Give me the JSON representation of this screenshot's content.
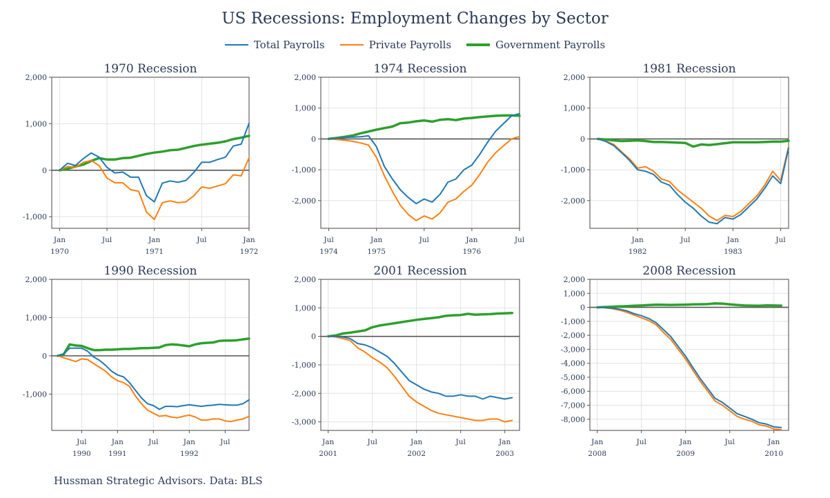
{
  "title": "US Recessions: Employment Changes by Sector",
  "legend": [
    {
      "label": "Total Payrolls",
      "color": "#1f77b4"
    },
    {
      "label": "Private Payrolls",
      "color": "#ff7f0e"
    },
    {
      "label": "Government Payrolls",
      "color": "#2ca02c"
    }
  ],
  "footer": "Hussman Strategic Advisors. Data: BLS",
  "chart_data": [
    {
      "type": "line",
      "title": "1970 Recession",
      "yticks": [
        -1000,
        0,
        1000,
        2000
      ],
      "ytick_labels": [
        "-1,000",
        "0",
        "1,000",
        "2,000"
      ],
      "ylim": [
        -1250,
        2000
      ],
      "xlim": [
        -1,
        24
      ],
      "xticks": [
        {
          "pos": 0,
          "l1": "Jan",
          "l2": "1970"
        },
        {
          "pos": 6,
          "l1": "Jul",
          "l2": ""
        },
        {
          "pos": 12,
          "l1": "Jan",
          "l2": "1971"
        },
        {
          "pos": 18,
          "l1": "Jul",
          "l2": ""
        },
        {
          "pos": 24,
          "l1": "Jan",
          "l2": "1972"
        }
      ],
      "series": [
        {
          "name": "Total Payrolls",
          "values": [
            0,
            150,
            100,
            250,
            370,
            280,
            60,
            -60,
            -40,
            -150,
            -150,
            -550,
            -680,
            -280,
            -230,
            -260,
            -220,
            -50,
            170,
            170,
            230,
            280,
            520,
            560,
            1010
          ]
        },
        {
          "name": "Private Payrolls",
          "values": [
            0,
            80,
            60,
            170,
            210,
            100,
            -170,
            -270,
            -270,
            -420,
            -450,
            -900,
            -1060,
            -700,
            -660,
            -700,
            -680,
            -550,
            -360,
            -390,
            -340,
            -290,
            -100,
            -120,
            270
          ]
        },
        {
          "name": "Government Payrolls",
          "values": [
            0,
            30,
            80,
            120,
            200,
            260,
            230,
            230,
            260,
            270,
            310,
            350,
            380,
            400,
            430,
            440,
            480,
            520,
            550,
            570,
            590,
            620,
            670,
            700,
            740
          ]
        }
      ]
    },
    {
      "type": "line",
      "title": "1974 Recession",
      "yticks": [
        -2000,
        -1000,
        0,
        1000,
        2000
      ],
      "ytick_labels": [
        "-2,000",
        "-1,000",
        "0",
        "1,000",
        "2,000"
      ],
      "ylim": [
        -2900,
        2000
      ],
      "xlim": [
        -1,
        24
      ],
      "xticks": [
        {
          "pos": 0,
          "l1": "Jul",
          "l2": "1974"
        },
        {
          "pos": 6,
          "l1": "Jan",
          "l2": "1975"
        },
        {
          "pos": 12,
          "l1": "Jul",
          "l2": ""
        },
        {
          "pos": 18,
          "l1": "Jan",
          "l2": "1976"
        },
        {
          "pos": 24,
          "l1": "Jul",
          "l2": ""
        }
      ],
      "series": [
        {
          "name": "Total Payrolls",
          "values": [
            0,
            20,
            50,
            60,
            70,
            100,
            -250,
            -900,
            -1300,
            -1650,
            -1900,
            -2100,
            -1950,
            -2050,
            -1800,
            -1400,
            -1300,
            -1000,
            -850,
            -500,
            -100,
            250,
            500,
            750,
            820
          ]
        },
        {
          "name": "Private Payrolls",
          "values": [
            0,
            -20,
            -40,
            -80,
            -130,
            -200,
            -600,
            -1200,
            -1700,
            -2150,
            -2450,
            -2650,
            -2500,
            -2600,
            -2400,
            -2050,
            -1950,
            -1700,
            -1500,
            -1150,
            -750,
            -450,
            -220,
            0,
            80
          ]
        },
        {
          "name": "Government Payrolls",
          "values": [
            0,
            30,
            70,
            110,
            180,
            240,
            300,
            350,
            400,
            510,
            530,
            570,
            600,
            560,
            620,
            640,
            610,
            660,
            680,
            710,
            730,
            750,
            760,
            760,
            750
          ]
        }
      ]
    },
    {
      "type": "line",
      "title": "1981 Recession",
      "yticks": [
        -2000,
        -1000,
        0,
        1000,
        2000
      ],
      "ytick_labels": [
        "-2,000",
        "-1,000",
        "0",
        "1,000",
        "2,000"
      ],
      "ylim": [
        -2900,
        2000
      ],
      "xlim": [
        -1,
        24
      ],
      "xticks": [
        {
          "pos": 5,
          "l1": "Jan",
          "l2": "1982"
        },
        {
          "pos": 11,
          "l1": "Jul",
          "l2": ""
        },
        {
          "pos": 17,
          "l1": "Jan",
          "l2": "1983"
        },
        {
          "pos": 23,
          "l1": "Jul",
          "l2": ""
        }
      ],
      "series": [
        {
          "name": "Total Payrolls",
          "values": [
            0,
            -80,
            -220,
            -450,
            -700,
            -1000,
            -1050,
            -1150,
            -1400,
            -1500,
            -1800,
            -2050,
            -2250,
            -2500,
            -2700,
            -2750,
            -2550,
            -2600,
            -2450,
            -2200,
            -1950,
            -1600,
            -1200,
            -1450,
            -300
          ]
        },
        {
          "name": "Private Payrolls",
          "values": [
            0,
            -70,
            -180,
            -420,
            -650,
            -950,
            -900,
            -1050,
            -1300,
            -1380,
            -1650,
            -1850,
            -2050,
            -2250,
            -2500,
            -2650,
            -2480,
            -2520,
            -2350,
            -2100,
            -1850,
            -1500,
            -1050,
            -1350,
            -250
          ]
        },
        {
          "name": "Government Payrolls",
          "values": [
            0,
            -20,
            -50,
            -70,
            -60,
            -50,
            -70,
            -100,
            -100,
            -110,
            -120,
            -130,
            -250,
            -180,
            -200,
            -170,
            -140,
            -110,
            -110,
            -110,
            -110,
            -100,
            -90,
            -90,
            -60
          ]
        }
      ]
    },
    {
      "type": "line",
      "title": "1990 Recession",
      "yticks": [
        -1000,
        0,
        1000,
        2000
      ],
      "ytick_labels": [
        "-1,000",
        "0",
        "1,000",
        "2,000"
      ],
      "ylim": [
        -1950,
        2000
      ],
      "xlim": [
        -1,
        32
      ],
      "xticks": [
        {
          "pos": 4,
          "l1": "Jul",
          "l2": "1990"
        },
        {
          "pos": 10,
          "l1": "Jan",
          "l2": "1991"
        },
        {
          "pos": 16,
          "l1": "Jul",
          "l2": ""
        },
        {
          "pos": 22,
          "l1": "Jan",
          "l2": "1992"
        },
        {
          "pos": 28,
          "l1": "Jul",
          "l2": ""
        }
      ],
      "series": [
        {
          "name": "Total Payrolls",
          "values": [
            0,
            50,
            200,
            200,
            200,
            120,
            -30,
            -120,
            -250,
            -400,
            -500,
            -550,
            -700,
            -900,
            -1100,
            -1250,
            -1300,
            -1400,
            -1320,
            -1320,
            -1330,
            -1300,
            -1280,
            -1300,
            -1320,
            -1300,
            -1290,
            -1270,
            -1280,
            -1290,
            -1290,
            -1250,
            -1150
          ]
        },
        {
          "name": "Private Payrolls",
          "values": [
            0,
            -50,
            -100,
            -150,
            -80,
            -100,
            -200,
            -300,
            -400,
            -550,
            -650,
            -700,
            -800,
            -1050,
            -1250,
            -1420,
            -1500,
            -1580,
            -1560,
            -1600,
            -1620,
            -1580,
            -1550,
            -1600,
            -1680,
            -1680,
            -1650,
            -1650,
            -1700,
            -1720,
            -1680,
            -1650,
            -1580
          ]
        },
        {
          "name": "Government Payrolls",
          "values": [
            0,
            40,
            300,
            270,
            260,
            200,
            150,
            150,
            160,
            160,
            170,
            180,
            180,
            190,
            200,
            200,
            210,
            220,
            280,
            300,
            290,
            270,
            250,
            300,
            330,
            340,
            350,
            390,
            400,
            400,
            410,
            430,
            450
          ]
        }
      ]
    },
    {
      "type": "line",
      "title": "2001 Recession",
      "yticks": [
        -3000,
        -2000,
        -1000,
        0,
        1000,
        2000
      ],
      "ytick_labels": [
        "-3,000",
        "-2,000",
        "-1,000",
        "0",
        "1,000",
        "2,000"
      ],
      "ylim": [
        -3300,
        2000
      ],
      "xlim": [
        -1,
        26
      ],
      "xticks": [
        {
          "pos": 0,
          "l1": "Jan",
          "l2": "2001"
        },
        {
          "pos": 6,
          "l1": "Jul",
          "l2": ""
        },
        {
          "pos": 12,
          "l1": "Jan",
          "l2": "2002"
        },
        {
          "pos": 18,
          "l1": "Jul",
          "l2": ""
        },
        {
          "pos": 24,
          "l1": "Jan",
          "l2": "2003"
        }
      ],
      "series": [
        {
          "name": "Total Payrolls",
          "values": [
            0,
            0,
            -20,
            -80,
            -250,
            -300,
            -400,
            -550,
            -700,
            -950,
            -1250,
            -1550,
            -1700,
            -1850,
            -1950,
            -2000,
            -2100,
            -2100,
            -2050,
            -2100,
            -2100,
            -2200,
            -2100,
            -2150,
            -2200,
            -2150
          ]
        },
        {
          "name": "Private Payrolls",
          "values": [
            0,
            -20,
            -80,
            -150,
            -400,
            -550,
            -750,
            -900,
            -1100,
            -1400,
            -1750,
            -2100,
            -2300,
            -2450,
            -2600,
            -2700,
            -2750,
            -2800,
            -2850,
            -2900,
            -2950,
            -2950,
            -2900,
            -2900,
            -3000,
            -2950
          ]
        },
        {
          "name": "Government Payrolls",
          "values": [
            0,
            30,
            100,
            130,
            170,
            210,
            320,
            380,
            420,
            460,
            500,
            540,
            580,
            610,
            640,
            670,
            720,
            740,
            750,
            790,
            760,
            770,
            780,
            800,
            810,
            820
          ]
        }
      ]
    },
    {
      "type": "line",
      "title": "2008 Recession",
      "yticks": [
        -8000,
        -7000,
        -6000,
        -5000,
        -4000,
        -3000,
        -2000,
        -1000,
        0,
        1000,
        2000
      ],
      "ytick_labels": [
        "-8,000",
        "-7,000",
        "-6,000",
        "-5,000",
        "-4,000",
        "-3,000",
        "-2,000",
        "-1,000",
        "0",
        "1,000",
        "2,000"
      ],
      "ylim": [
        -8800,
        2000
      ],
      "xlim": [
        -1,
        26
      ],
      "xticks": [
        {
          "pos": 0,
          "l1": "Jan",
          "l2": "2008"
        },
        {
          "pos": 6,
          "l1": "Jul",
          "l2": ""
        },
        {
          "pos": 12,
          "l1": "Jan",
          "l2": "2009"
        },
        {
          "pos": 18,
          "l1": "Jul",
          "l2": ""
        },
        {
          "pos": 24,
          "l1": "Jan",
          "l2": "2010"
        }
      ],
      "series": [
        {
          "name": "Total Payrolls",
          "values": [
            0,
            -20,
            -60,
            -130,
            -250,
            -450,
            -600,
            -800,
            -1100,
            -1600,
            -2100,
            -2800,
            -3500,
            -4300,
            -5100,
            -5800,
            -6500,
            -6800,
            -7200,
            -7600,
            -7800,
            -8000,
            -8250,
            -8350,
            -8550,
            -8600
          ]
        },
        {
          "name": "Private Payrolls",
          "values": [
            0,
            -30,
            -90,
            -200,
            -350,
            -550,
            -750,
            -950,
            -1250,
            -1800,
            -2300,
            -3000,
            -3700,
            -4500,
            -5300,
            -6000,
            -6700,
            -7000,
            -7400,
            -7800,
            -8000,
            -8150,
            -8400,
            -8500,
            -8700,
            -8750
          ]
        },
        {
          "name": "Government Payrolls",
          "values": [
            0,
            20,
            40,
            60,
            80,
            110,
            130,
            160,
            190,
            180,
            170,
            180,
            190,
            210,
            220,
            230,
            280,
            260,
            210,
            170,
            130,
            120,
            110,
            140,
            130,
            120
          ]
        }
      ]
    }
  ]
}
